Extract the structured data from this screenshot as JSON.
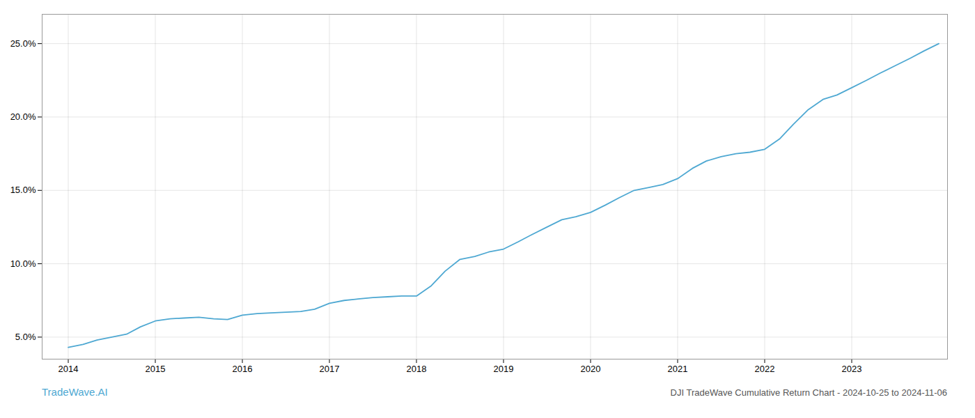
{
  "chart_data": {
    "type": "line",
    "x": [
      2014.0,
      2014.17,
      2014.33,
      2014.5,
      2014.67,
      2014.83,
      2015.0,
      2015.17,
      2015.33,
      2015.5,
      2015.67,
      2015.83,
      2016.0,
      2016.17,
      2016.33,
      2016.5,
      2016.67,
      2016.83,
      2017.0,
      2017.17,
      2017.33,
      2017.5,
      2017.67,
      2017.83,
      2018.0,
      2018.17,
      2018.33,
      2018.5,
      2018.67,
      2018.83,
      2019.0,
      2019.17,
      2019.33,
      2019.5,
      2019.67,
      2019.83,
      2020.0,
      2020.17,
      2020.33,
      2020.5,
      2020.67,
      2020.83,
      2021.0,
      2021.17,
      2021.33,
      2021.5,
      2021.67,
      2021.83,
      2022.0,
      2022.17,
      2022.33,
      2022.5,
      2022.67,
      2022.83,
      2023.0,
      2023.17,
      2023.33,
      2023.5,
      2023.67,
      2023.83,
      2024.0
    ],
    "values": [
      4.3,
      4.5,
      4.8,
      5.0,
      5.2,
      5.7,
      6.1,
      6.25,
      6.3,
      6.35,
      6.25,
      6.2,
      6.5,
      6.6,
      6.65,
      6.7,
      6.75,
      6.9,
      7.3,
      7.5,
      7.6,
      7.7,
      7.75,
      7.8,
      7.8,
      8.5,
      9.5,
      10.3,
      10.5,
      10.8,
      11.0,
      11.5,
      12.0,
      12.5,
      13.0,
      13.2,
      13.5,
      14.0,
      14.5,
      15.0,
      15.2,
      15.4,
      15.8,
      16.5,
      17.0,
      17.3,
      17.5,
      17.6,
      17.8,
      18.5,
      19.5,
      20.5,
      21.2,
      21.5,
      22.0,
      22.5,
      23.0,
      23.5,
      24.0,
      24.5,
      25.0
    ],
    "color": "#4EA8D2",
    "xlim": [
      2013.7,
      2024.1
    ],
    "xticks": [
      2014,
      2015,
      2016,
      2017,
      2018,
      2019,
      2020,
      2021,
      2022,
      2023
    ],
    "ylim": [
      3.5,
      27.0
    ],
    "yticks": [
      {
        "value": 5.0,
        "label": "5.0%"
      },
      {
        "value": 10.0,
        "label": "10.0%"
      },
      {
        "value": 15.0,
        "label": "15.0%"
      },
      {
        "value": 20.0,
        "label": "20.0%"
      },
      {
        "value": 25.0,
        "label": "25.0%"
      }
    ],
    "grid": true,
    "annotations": [
      {
        "text": "TradeWave.AI",
        "color": "#4EA8D2"
      },
      {
        "text": "DJI TradeWave Cumulative Return Chart - 2024-10-25 to 2024-11-06",
        "color": "#555555"
      }
    ]
  }
}
